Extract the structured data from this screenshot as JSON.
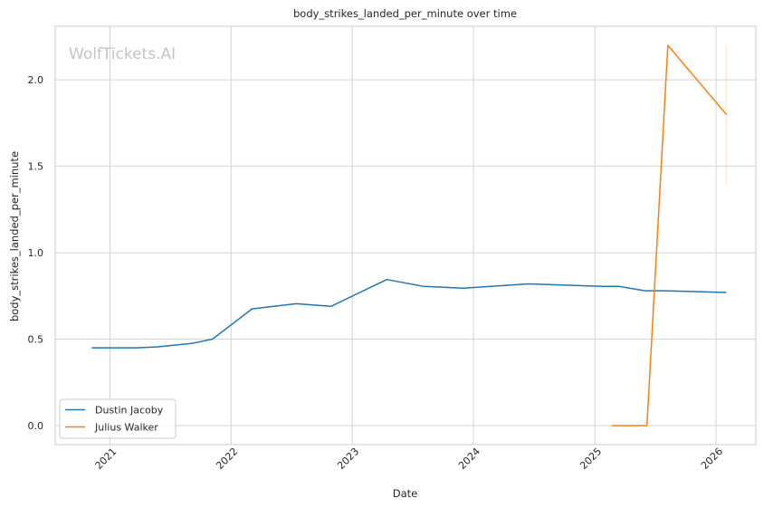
{
  "chart_data": {
    "type": "line",
    "title": "body_strikes_landed_per_minute over time",
    "xlabel": "Date",
    "ylabel": "body_strikes_landed_per_minute",
    "watermark": "WolfTickets.AI",
    "xlim": [
      "2020-07-20",
      "2026-05-01"
    ],
    "ylim": [
      -0.11,
      2.31
    ],
    "x_ticks": [
      "2021-01-01",
      "2022-01-01",
      "2023-01-01",
      "2024-01-01",
      "2025-01-01",
      "2026-01-01"
    ],
    "x_tick_labels": [
      "2021",
      "2022",
      "2023",
      "2024",
      "2025",
      "2026"
    ],
    "y_ticks": [
      0.0,
      0.5,
      1.0,
      1.5,
      2.0
    ],
    "y_tick_labels": [
      "0.0",
      "0.5",
      "1.0",
      "1.5",
      "2.0"
    ],
    "grid": true,
    "legend_position": "lower-left",
    "series": [
      {
        "name": "Dustin Jacoby",
        "color": "#1f77b4",
        "points": [
          {
            "x": "2020-11-07",
            "y": 0.45
          },
          {
            "x": "2021-03-20",
            "y": 0.45
          },
          {
            "x": "2021-05-22",
            "y": 0.455
          },
          {
            "x": "2021-09-04",
            "y": 0.475
          },
          {
            "x": "2021-11-06",
            "y": 0.5
          },
          {
            "x": "2022-03-05",
            "y": 0.675
          },
          {
            "x": "2022-07-16",
            "y": 0.705
          },
          {
            "x": "2022-10-29",
            "y": 0.69
          },
          {
            "x": "2023-04-15",
            "y": 0.845
          },
          {
            "x": "2023-08-05",
            "y": 0.805
          },
          {
            "x": "2023-12-02",
            "y": 0.795
          },
          {
            "x": "2024-06-15",
            "y": 0.82
          },
          {
            "x": "2025-01-25",
            "y": 0.805
          },
          {
            "x": "2025-03-15",
            "y": 0.805
          },
          {
            "x": "2025-06-01",
            "y": 0.78
          },
          {
            "x": "2025-08-01",
            "y": 0.78
          },
          {
            "x": "2026-02-01",
            "y": 0.77
          }
        ]
      },
      {
        "name": "Julius Walker",
        "color": "#ff7f0e",
        "points": [
          {
            "x": "2025-02-22",
            "y": 0.0
          },
          {
            "x": "2025-06-07",
            "y": 0.0
          },
          {
            "x": "2025-08-09",
            "y": 2.2
          },
          {
            "x": "2026-02-01",
            "y": 1.8
          }
        ],
        "error_bar": {
          "x": "2026-02-01",
          "low": 1.4,
          "high": 2.2
        }
      }
    ]
  }
}
